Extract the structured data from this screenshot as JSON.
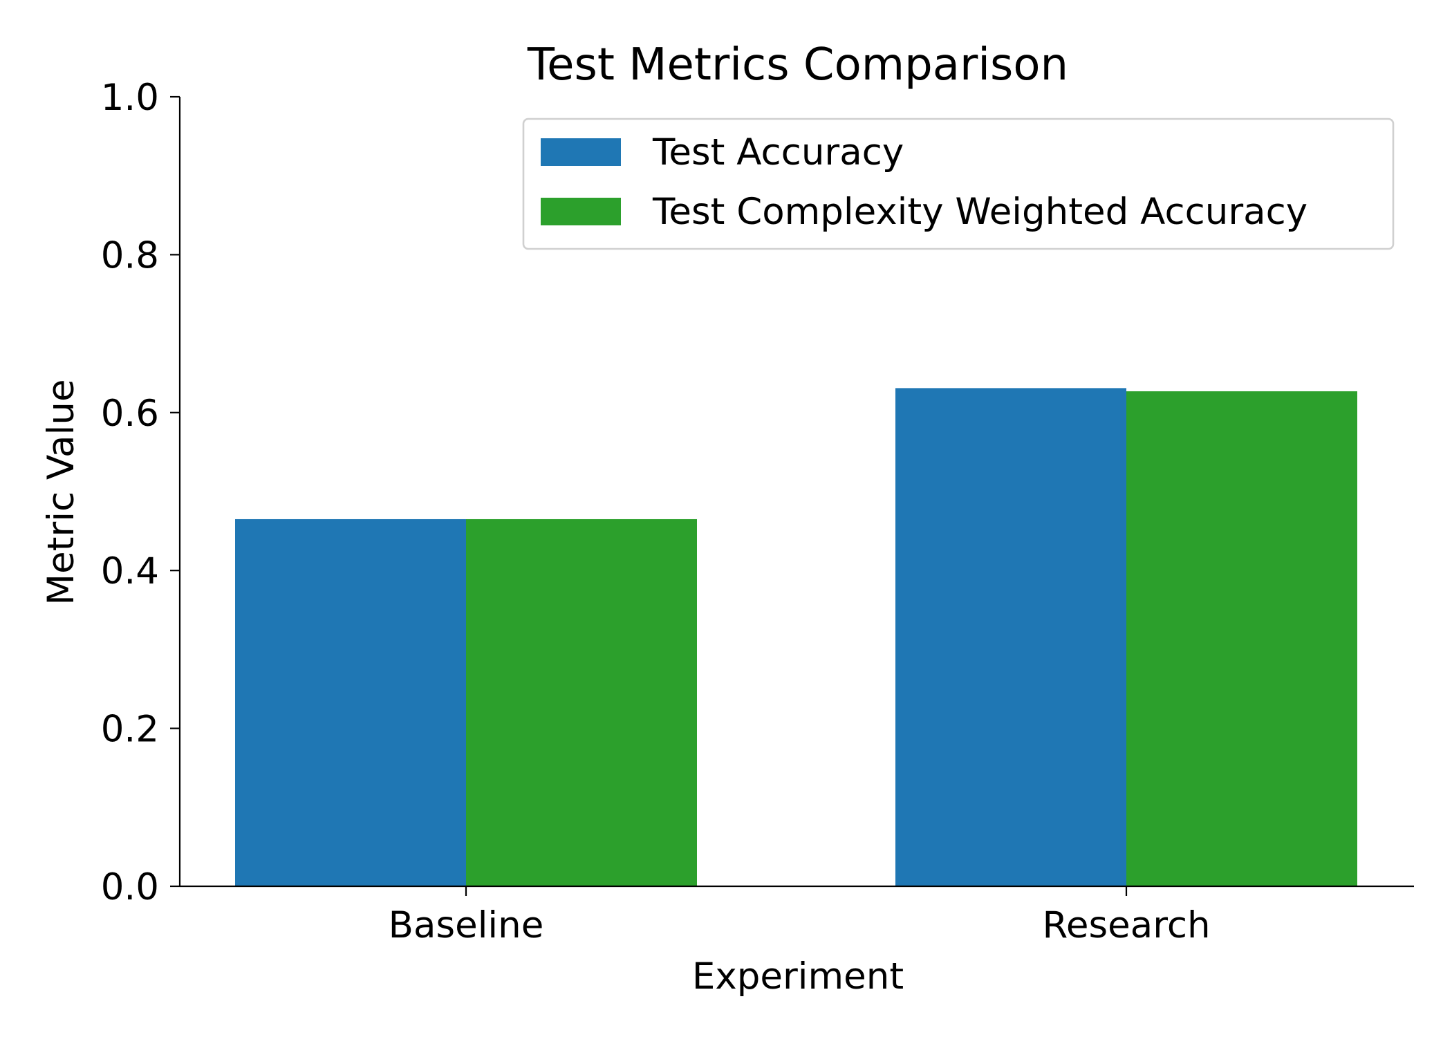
{
  "chart_data": {
    "type": "bar",
    "title": "Test Metrics Comparison",
    "xlabel": "Experiment",
    "ylabel": "Metric Value",
    "categories": [
      "Baseline",
      "Research"
    ],
    "series": [
      {
        "name": "Test Accuracy",
        "color": "#1f77b4",
        "values": [
          0.465,
          0.631
        ]
      },
      {
        "name": "Test Complexity Weighted Accuracy",
        "color": "#2ca02c",
        "values": [
          0.465,
          0.627
        ]
      }
    ],
    "ylim": [
      0,
      1.0
    ],
    "yticks": [
      "0.0",
      "0.2",
      "0.4",
      "0.6",
      "0.8",
      "1.0"
    ],
    "ytick_values": [
      0,
      0.2,
      0.4,
      0.6,
      0.8,
      1.0
    ],
    "grid": false,
    "legend_position": "top-right"
  }
}
